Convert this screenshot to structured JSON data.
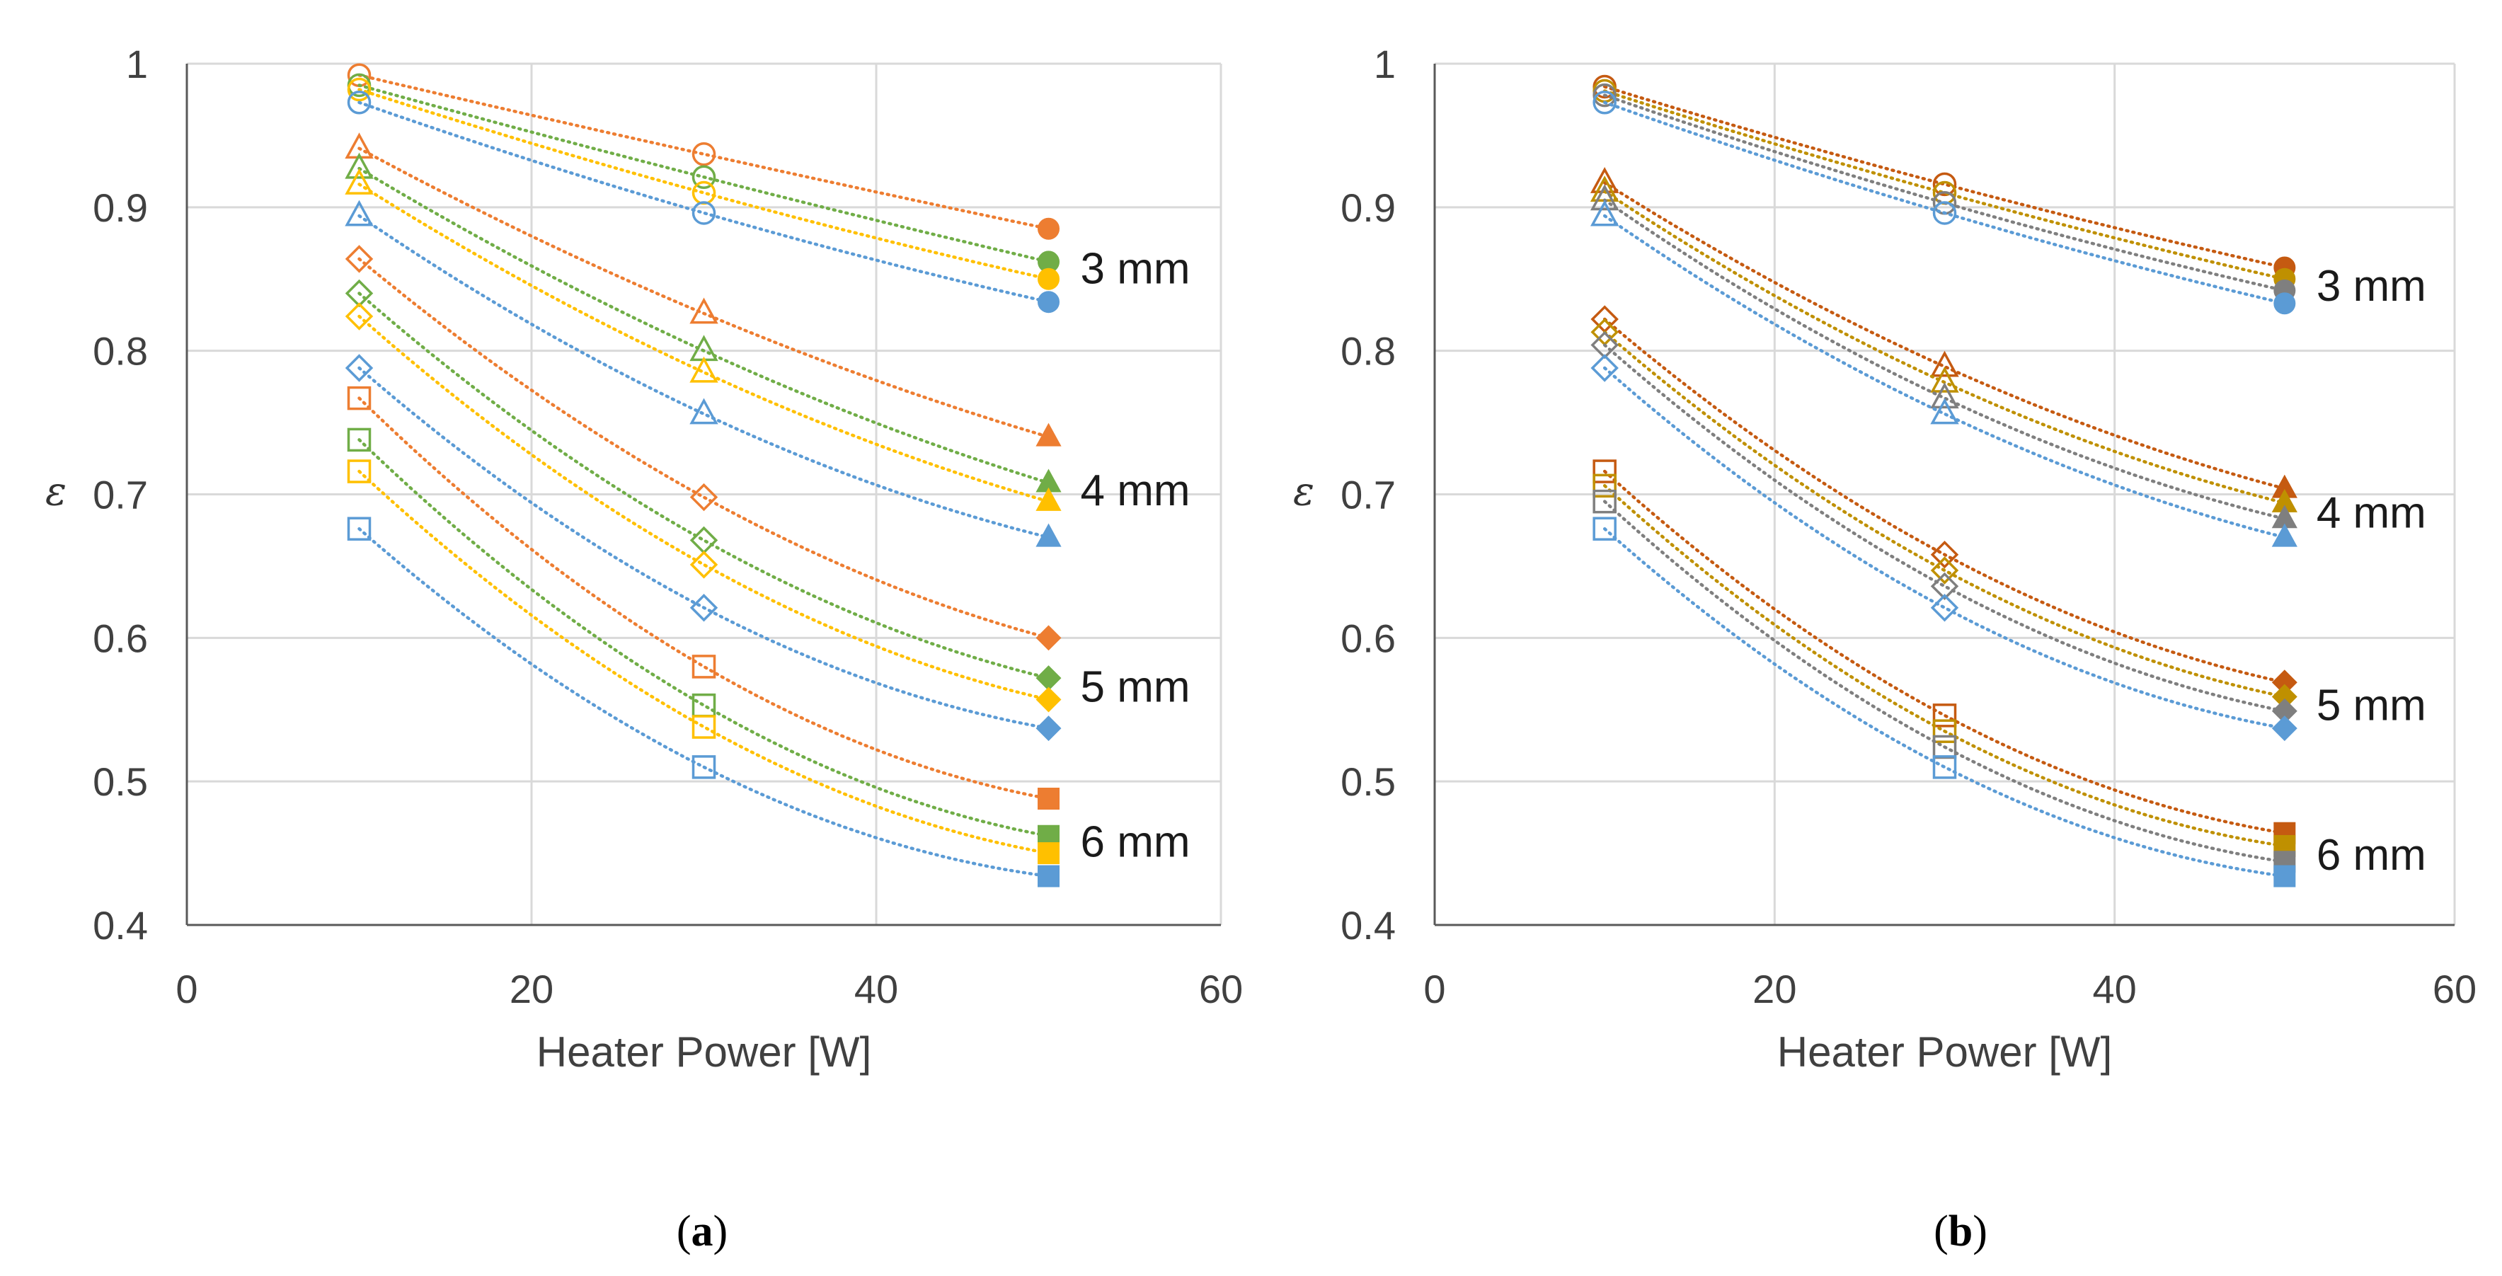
{
  "chart_data": [
    {
      "panel": "a",
      "type": "scatter",
      "xlabel": "Heater Power [W]",
      "ylabel": "ε",
      "xlim": [
        0,
        60
      ],
      "ylim": [
        0.4,
        1
      ],
      "xticks": [
        0,
        20,
        40,
        60
      ],
      "yticks": [
        0.4,
        0.5,
        0.6,
        0.7,
        0.8,
        0.9,
        1
      ],
      "grid": true,
      "x": [
        10,
        30,
        50
      ],
      "groups": [
        {
          "label": "3 mm",
          "marker": "circle",
          "series": [
            {
              "color": "#ED7D31",
              "values": [
                0.992,
                0.937,
                0.885
              ]
            },
            {
              "color": "#70AD47",
              "values": [
                0.985,
                0.921,
                0.862
              ]
            },
            {
              "color": "#FFC000",
              "values": [
                0.982,
                0.91,
                0.85
              ]
            },
            {
              "color": "#5B9BD5",
              "values": [
                0.973,
                0.896,
                0.834
              ]
            }
          ]
        },
        {
          "label": "4 mm",
          "marker": "triangle",
          "series": [
            {
              "color": "#ED7D31",
              "values": [
                0.941,
                0.826,
                0.74
              ]
            },
            {
              "color": "#70AD47",
              "values": [
                0.927,
                0.8,
                0.708
              ]
            },
            {
              "color": "#FFC000",
              "values": [
                0.916,
                0.785,
                0.695
              ]
            },
            {
              "color": "#5B9BD5",
              "values": [
                0.894,
                0.756,
                0.67
              ]
            }
          ]
        },
        {
          "label": "5 mm",
          "marker": "diamond",
          "series": [
            {
              "color": "#ED7D31",
              "values": [
                0.864,
                0.698,
                0.6
              ]
            },
            {
              "color": "#70AD47",
              "values": [
                0.84,
                0.668,
                0.572
              ]
            },
            {
              "color": "#FFC000",
              "values": [
                0.824,
                0.651,
                0.557
              ]
            },
            {
              "color": "#5B9BD5",
              "values": [
                0.788,
                0.621,
                0.537
              ]
            }
          ]
        },
        {
          "label": "6 mm",
          "marker": "square",
          "series": [
            {
              "color": "#ED7D31",
              "values": [
                0.767,
                0.58,
                0.488
              ]
            },
            {
              "color": "#70AD47",
              "values": [
                0.738,
                0.553,
                0.462
              ]
            },
            {
              "color": "#FFC000",
              "values": [
                0.716,
                0.538,
                0.45
              ]
            },
            {
              "color": "#5B9BD5",
              "values": [
                0.676,
                0.51,
                0.434
              ]
            }
          ]
        }
      ]
    },
    {
      "panel": "b",
      "type": "scatter",
      "xlabel": "Heater Power [W]",
      "ylabel": "ε",
      "xlim": [
        0,
        60
      ],
      "ylim": [
        0.4,
        1
      ],
      "xticks": [
        0,
        20,
        40,
        60
      ],
      "yticks": [
        0.4,
        0.5,
        0.6,
        0.7,
        0.8,
        0.9,
        1
      ],
      "grid": true,
      "x": [
        10,
        30,
        50
      ],
      "groups": [
        {
          "label": "3 mm",
          "marker": "circle",
          "series": [
            {
              "color": "#C55A11",
              "values": [
                0.984,
                0.916,
                0.858
              ]
            },
            {
              "color": "#BF9000",
              "values": [
                0.981,
                0.91,
                0.85
              ]
            },
            {
              "color": "#7F7F7F",
              "values": [
                0.978,
                0.903,
                0.842
              ]
            },
            {
              "color": "#5B9BD5",
              "values": [
                0.973,
                0.896,
                0.833
              ]
            }
          ]
        },
        {
          "label": "4 mm",
          "marker": "triangle",
          "series": [
            {
              "color": "#C55A11",
              "values": [
                0.917,
                0.789,
                0.704
              ]
            },
            {
              "color": "#BF9000",
              "values": [
                0.911,
                0.778,
                0.694
              ]
            },
            {
              "color": "#7F7F7F",
              "values": [
                0.905,
                0.767,
                0.683
              ]
            },
            {
              "color": "#5B9BD5",
              "values": [
                0.894,
                0.756,
                0.67
              ]
            }
          ]
        },
        {
          "label": "5 mm",
          "marker": "diamond",
          "series": [
            {
              "color": "#C55A11",
              "values": [
                0.822,
                0.658,
                0.569
              ]
            },
            {
              "color": "#BF9000",
              "values": [
                0.813,
                0.647,
                0.559
              ]
            },
            {
              "color": "#7F7F7F",
              "values": [
                0.804,
                0.636,
                0.549
              ]
            },
            {
              "color": "#5B9BD5",
              "values": [
                0.788,
                0.621,
                0.537
              ]
            }
          ]
        },
        {
          "label": "6 mm",
          "marker": "square",
          "series": [
            {
              "color": "#C55A11",
              "values": [
                0.716,
                0.546,
                0.464
              ]
            },
            {
              "color": "#BF9000",
              "values": [
                0.706,
                0.535,
                0.455
              ]
            },
            {
              "color": "#7F7F7F",
              "values": [
                0.695,
                0.524,
                0.444
              ]
            },
            {
              "color": "#5B9BD5",
              "values": [
                0.676,
                0.51,
                0.434
              ]
            }
          ]
        }
      ]
    }
  ],
  "captions": {
    "a": "a",
    "b": "b"
  }
}
